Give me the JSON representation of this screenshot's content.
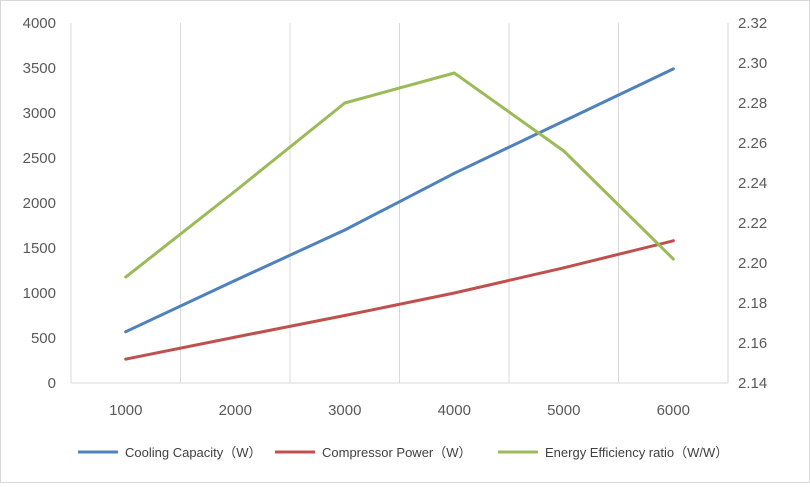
{
  "chart_data": {
    "type": "line",
    "x": [
      1000,
      2000,
      3000,
      4000,
      5000,
      6000
    ],
    "x_ticks": [
      "1000",
      "2000",
      "3000",
      "4000",
      "5000",
      "6000"
    ],
    "y_left": {
      "min": 0,
      "max": 4000,
      "step": 500,
      "ticks": [
        "0",
        "500",
        "1000",
        "1500",
        "2000",
        "2500",
        "3000",
        "3500",
        "4000"
      ]
    },
    "y_right": {
      "min": 2.14,
      "max": 2.32,
      "step": 0.02,
      "ticks": [
        "2.14",
        "2.16",
        "2.18",
        "2.20",
        "2.22",
        "2.24",
        "2.26",
        "2.28",
        "2.30",
        "2.32"
      ]
    },
    "grid": "vertical",
    "legend_position": "bottom",
    "series": [
      {
        "name": "Cooling Capacity（W）",
        "axis": "left",
        "color": "#4f81bd",
        "values": [
          570,
          1140,
          1700,
          2330,
          2910,
          3490
        ]
      },
      {
        "name": "Compressor Power（W）",
        "axis": "left",
        "color": "#c0504d",
        "values": [
          265,
          510,
          750,
          1000,
          1280,
          1580
        ]
      },
      {
        "name": "Energy Efficiency ratio（W/W）",
        "axis": "right",
        "color": "#9bbb59",
        "values": [
          2.193,
          2.236,
          2.28,
          2.295,
          2.256,
          2.202
        ]
      }
    ]
  }
}
